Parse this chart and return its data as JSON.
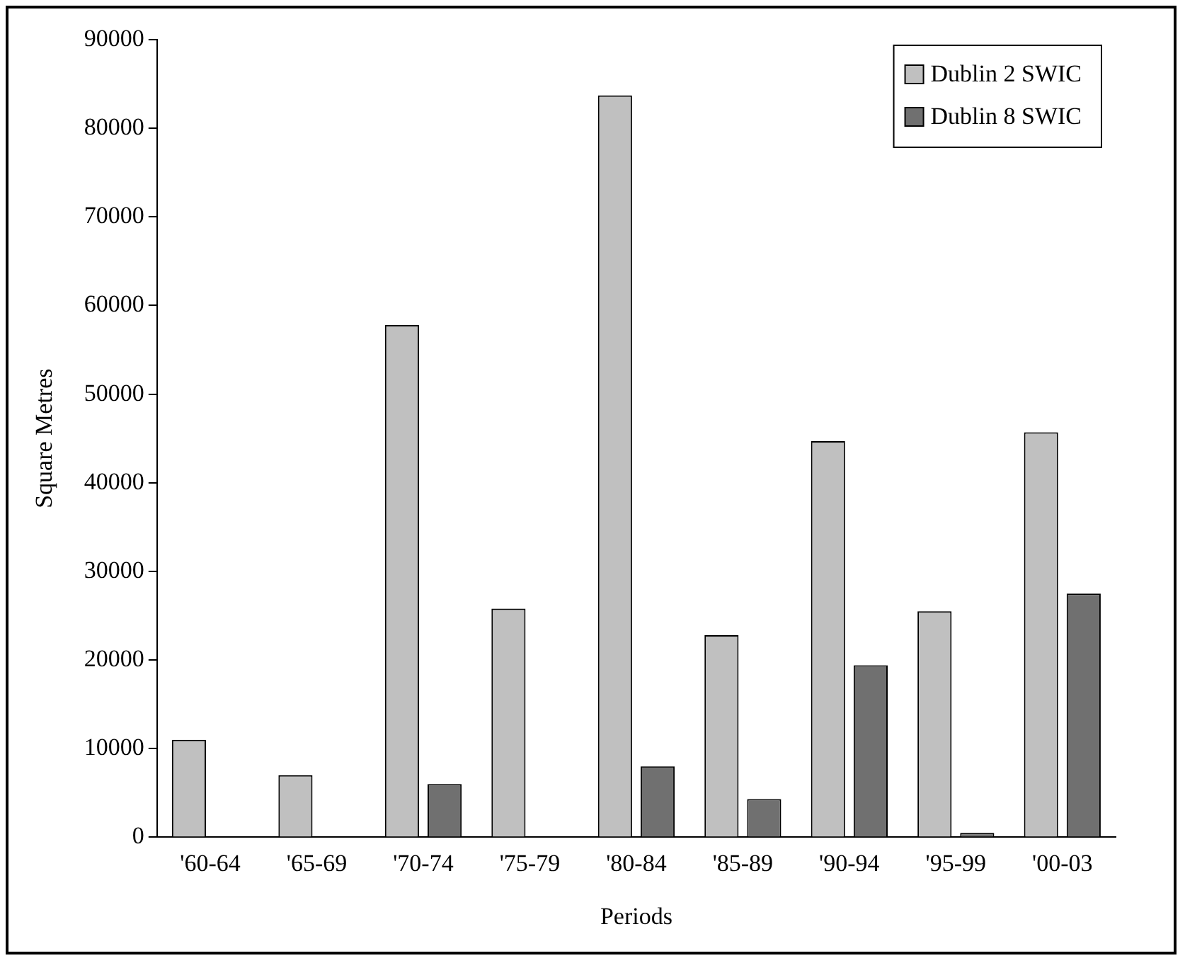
{
  "chart_data": {
    "type": "bar",
    "xlabel": "Periods",
    "ylabel": "Square Metres",
    "categories": [
      "'60-64",
      "'65-69",
      "'70-74",
      "'75-79",
      "'80-84",
      "'85-89",
      "'90-94",
      "'95-99",
      "'00-03"
    ],
    "series": [
      {
        "name": "Dublin 2 SWIC",
        "color": "#c0c0c0",
        "values": [
          11000,
          7000,
          57800,
          25800,
          83700,
          22800,
          44700,
          25500,
          45700
        ]
      },
      {
        "name": "Dublin 8 SWIC",
        "color": "#707070",
        "values": [
          0,
          0,
          6000,
          0,
          8000,
          4300,
          19400,
          500,
          27500
        ]
      }
    ],
    "ylim": [
      0,
      90000
    ],
    "yticks": [
      0,
      10000,
      20000,
      30000,
      40000,
      50000,
      60000,
      70000,
      80000,
      90000
    ],
    "grid": false,
    "legend": "top right"
  }
}
